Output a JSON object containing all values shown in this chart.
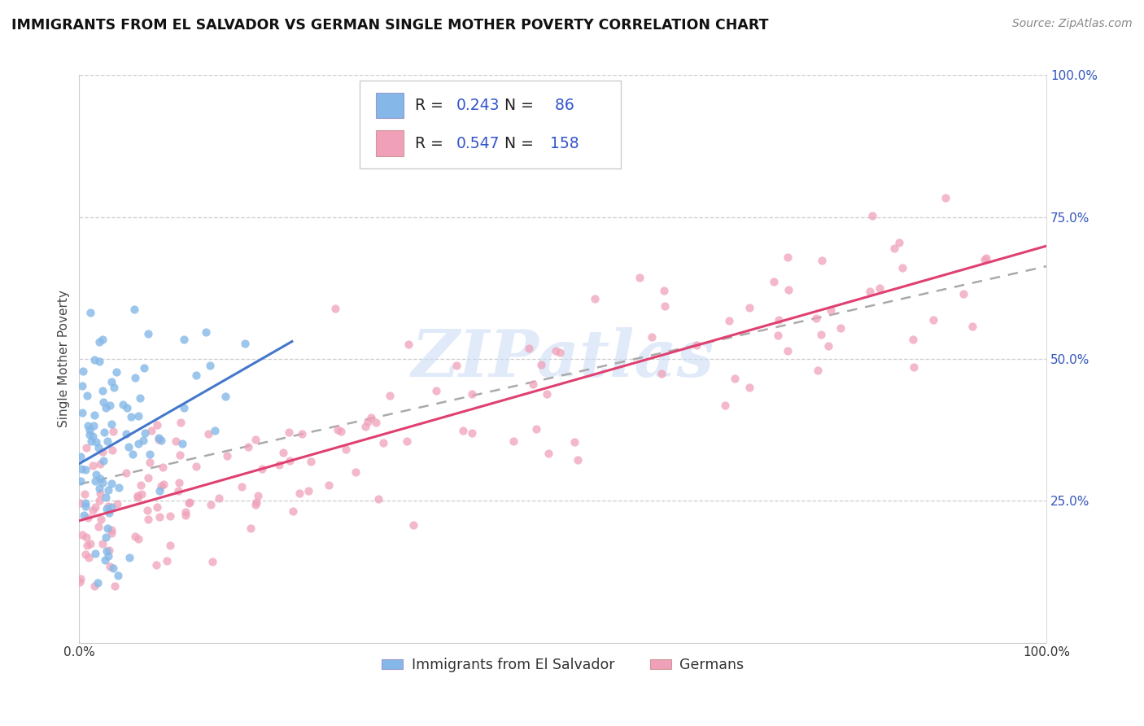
{
  "title": "IMMIGRANTS FROM EL SALVADOR VS GERMAN SINGLE MOTHER POVERTY CORRELATION CHART",
  "source": "Source: ZipAtlas.com",
  "ylabel": "Single Mother Poverty",
  "legend_label1": "Immigrants from El Salvador",
  "legend_label2": "Germans",
  "r1": 0.243,
  "n1": 86,
  "r2": 0.547,
  "n2": 158,
  "color1": "#85b8e8",
  "color2": "#f0a0b8",
  "line1_color": "#4477cc",
  "line2_color": "#e04070",
  "trendline_color": "#aaaaaa",
  "background_color": "#ffffff",
  "watermark_color": "#ccddf5",
  "text_color": "#3355bb",
  "label_color": "#444444"
}
